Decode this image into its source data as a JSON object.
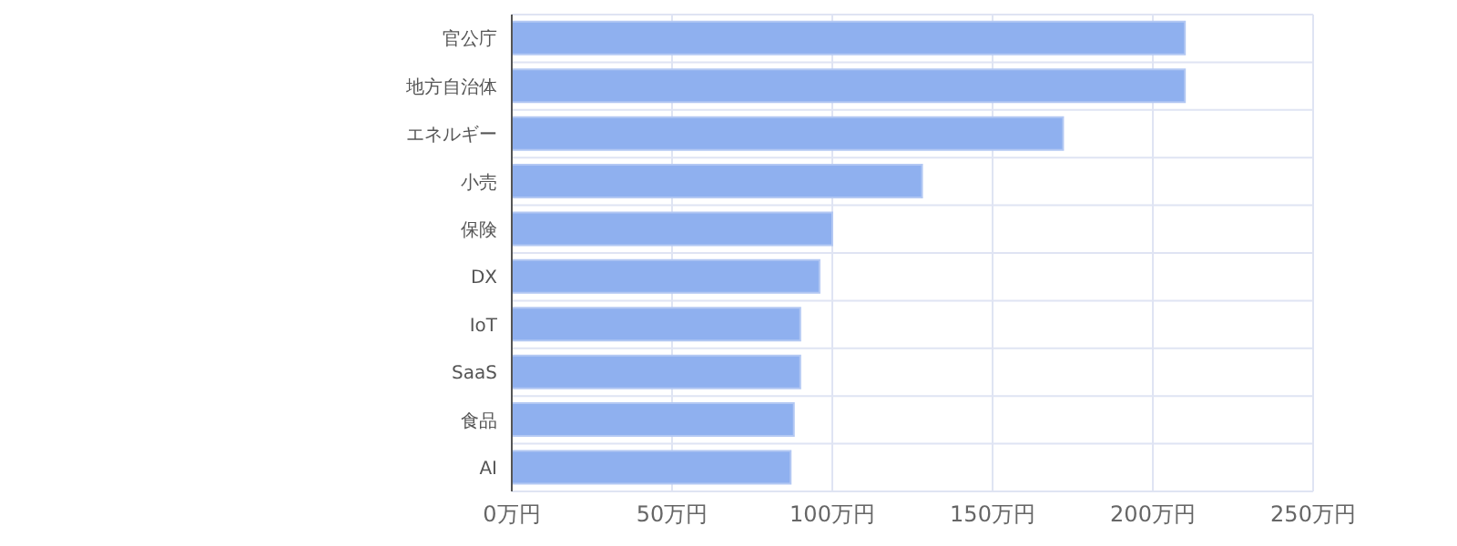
{
  "chart_data": {
    "type": "bar",
    "orientation": "horizontal",
    "categories": [
      "官公庁",
      "地方自治体",
      "エネルギー",
      "小売",
      "保険",
      "DX",
      "IoT",
      "SaaS",
      "食品",
      "AI"
    ],
    "values": [
      210,
      210,
      172,
      128,
      100,
      96,
      90,
      90,
      88,
      87
    ],
    "color": "#8fb0ef",
    "xlim": [
      0,
      250
    ],
    "xticks": [
      {
        "value": 0,
        "label": "0万円"
      },
      {
        "value": 50,
        "label": "50万円"
      },
      {
        "value": 100,
        "label": "100万円"
      },
      {
        "value": 150,
        "label": "150万円"
      },
      {
        "value": 200,
        "label": "200万円"
      },
      {
        "value": 250,
        "label": "250万円"
      }
    ],
    "grid": true
  }
}
